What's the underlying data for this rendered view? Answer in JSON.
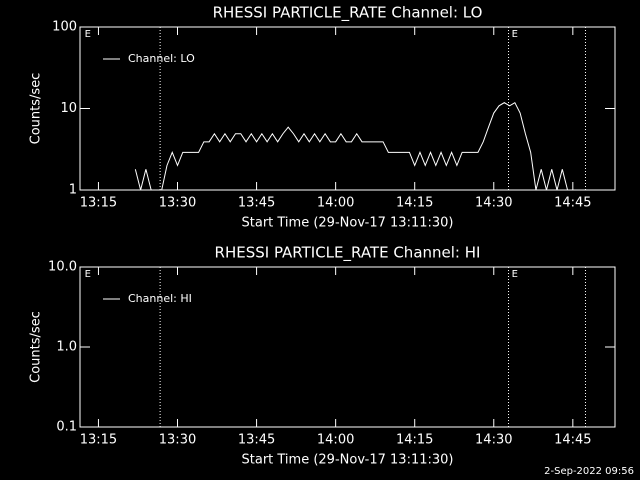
{
  "chart_data": [
    {
      "type": "line",
      "title": "RHESSI PARTICLE_RATE Channel: LO",
      "xlabel": "Start Time (29-Nov-17 13:11:30)",
      "ylabel": "Counts/sec",
      "log_y": true,
      "legend": "top-left",
      "xlim": [
        791.5,
        893
      ],
      "xticks": [
        {
          "value": 795,
          "label": "13:15"
        },
        {
          "value": 810,
          "label": "13:30"
        },
        {
          "value": 825,
          "label": "13:45"
        },
        {
          "value": 840,
          "label": "14:00"
        },
        {
          "value": 855,
          "label": "14:15"
        },
        {
          "value": 870,
          "label": "14:30"
        },
        {
          "value": 885,
          "label": "14:45"
        }
      ],
      "ylim": [
        1,
        100
      ],
      "yticks": [
        1,
        10,
        100
      ],
      "event_lines": [
        806.7,
        872.8,
        887.4
      ],
      "annotations": [
        {
          "text": "E",
          "x": 792
        },
        {
          "text": "E",
          "x": 873
        }
      ],
      "x": [
        802,
        803,
        804,
        805,
        806,
        807,
        808,
        809,
        810,
        811,
        812,
        813,
        814,
        815,
        816,
        817,
        818,
        819,
        820,
        821,
        822,
        823,
        824,
        825,
        826,
        827,
        828,
        829,
        830,
        831,
        832,
        833,
        834,
        835,
        836,
        837,
        838,
        839,
        840,
        841,
        842,
        843,
        844,
        845,
        846,
        847,
        848,
        849,
        850,
        851,
        852,
        853,
        854,
        855,
        856,
        857,
        858,
        859,
        860,
        861,
        862,
        863,
        864,
        865,
        866,
        867,
        868,
        869,
        870,
        871,
        872,
        873,
        874,
        875,
        876,
        877,
        878,
        879,
        880,
        881,
        882,
        883,
        884
      ],
      "series": [
        {
          "name": "Channel: LO",
          "color": "#ffffff",
          "values": [
            1.8,
            1,
            1.8,
            1,
            1,
            1,
            2,
            2.9,
            2,
            2.9,
            2.9,
            2.9,
            2.9,
            3.9,
            3.9,
            4.9,
            3.9,
            4.9,
            3.9,
            4.9,
            4.9,
            3.9,
            4.9,
            3.9,
            4.9,
            3.9,
            4.9,
            3.9,
            4.9,
            5.9,
            4.9,
            3.9,
            4.9,
            3.9,
            4.9,
            3.9,
            4.9,
            3.9,
            3.9,
            4.9,
            3.9,
            3.9,
            4.9,
            3.9,
            3.9,
            3.9,
            3.9,
            3.9,
            2.9,
            2.9,
            2.9,
            2.9,
            2.9,
            2,
            2.9,
            2,
            2.9,
            2,
            2.9,
            2,
            2.9,
            2,
            2.9,
            2.9,
            2.9,
            2.9,
            3.9,
            5.9,
            8.8,
            10.8,
            11.8,
            10.8,
            11.8,
            8.8,
            4.9,
            2.9,
            1,
            1.8,
            1,
            1.8,
            1,
            1.8,
            1
          ]
        }
      ]
    },
    {
      "type": "line",
      "title": "RHESSI PARTICLE_RATE Channel: HI",
      "xlabel": "Start Time (29-Nov-17 13:11:30)",
      "ylabel": "Counts/sec",
      "log_y": true,
      "legend": "top-left",
      "xlim": [
        791.5,
        893
      ],
      "xticks": [
        {
          "value": 795,
          "label": "13:15"
        },
        {
          "value": 810,
          "label": "13:30"
        },
        {
          "value": 825,
          "label": "13:45"
        },
        {
          "value": 840,
          "label": "14:00"
        },
        {
          "value": 855,
          "label": "14:15"
        },
        {
          "value": 870,
          "label": "14:30"
        },
        {
          "value": 885,
          "label": "14:45"
        }
      ],
      "ylim": [
        0.1,
        10
      ],
      "yticks": [
        0.1,
        {
          "value": 1,
          "label": "1.0"
        },
        {
          "value": 10,
          "label": "10.0"
        }
      ],
      "event_lines": [
        806.7,
        872.8,
        887.4
      ],
      "annotations": [
        {
          "text": "E",
          "x": 792
        },
        {
          "text": "E",
          "x": 873
        }
      ],
      "x": [],
      "series": [
        {
          "name": "Channel: HI",
          "color": "#ffffff",
          "values": []
        }
      ]
    }
  ],
  "footer": "2-Sep-2022 09:56"
}
